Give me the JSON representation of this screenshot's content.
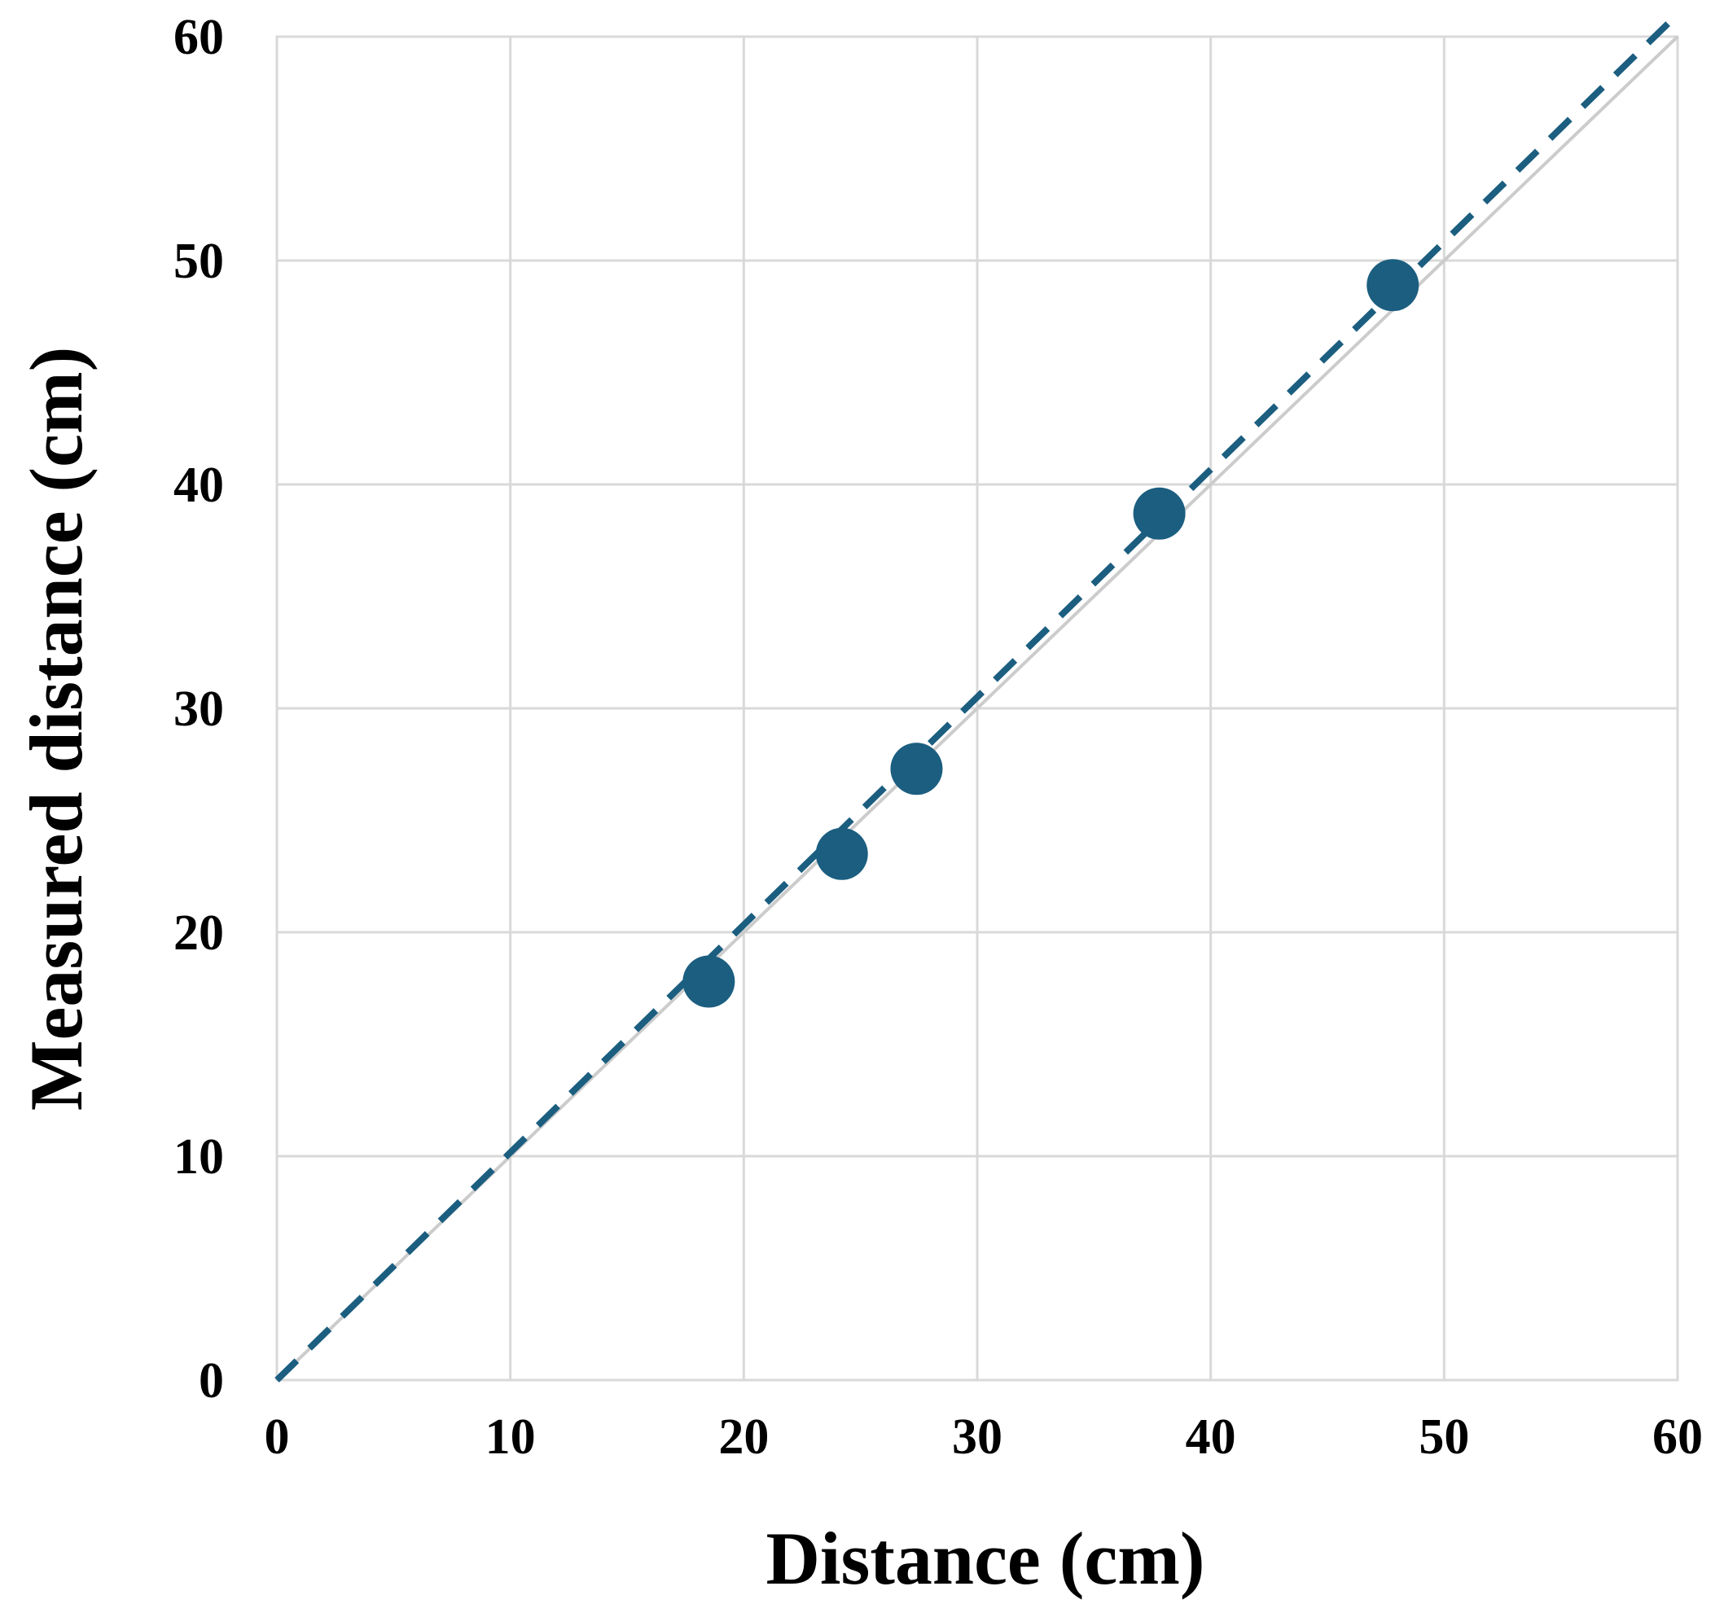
{
  "chart_data": {
    "type": "scatter",
    "title": "",
    "xlabel": "Distance (cm)",
    "ylabel": "Measured distance (cm)",
    "xlim": [
      0,
      60
    ],
    "ylim": [
      0,
      60
    ],
    "xticks": [
      "0",
      "10",
      "20",
      "30",
      "40",
      "50",
      "60"
    ],
    "yticks": [
      "0",
      "10",
      "20",
      "30",
      "40",
      "50",
      "60"
    ],
    "grid": true,
    "legend": "none",
    "series": [
      {
        "x": [
          18.5,
          24.2,
          27.4,
          37.8,
          47.8
        ],
        "y": [
          17.8,
          23.5,
          27.3,
          38.7,
          48.9
        ],
        "color": "#1b5e80",
        "marker": "circle"
      }
    ],
    "reference_line": {
      "x": [
        0,
        60
      ],
      "y": [
        0,
        60
      ],
      "color": "#cccccc",
      "style": "solid"
    },
    "trend_line": {
      "x": [
        0,
        60
      ],
      "y": [
        0,
        61
      ],
      "color": "#1b5e80",
      "style": "dashed"
    }
  }
}
